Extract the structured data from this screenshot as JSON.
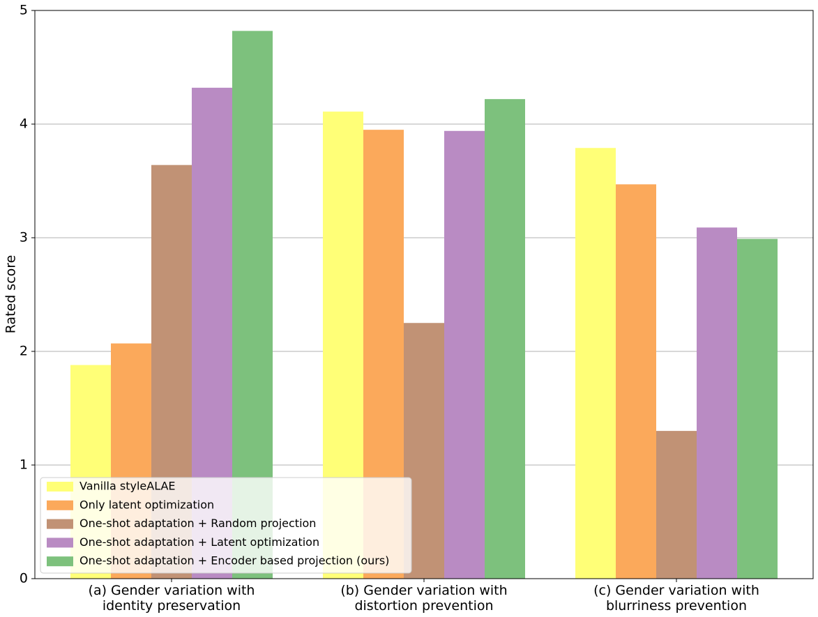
{
  "chart_data": {
    "type": "bar",
    "y_label": "Rated score",
    "categories": [
      "(a) Gender variation with\nidentity preservation",
      "(b) Gender variation with\ndistortion prevention",
      "(c) Gender variation with\nblurriness prevention"
    ],
    "series": [
      {
        "name": "Vanilla styleALAE",
        "color": "#ffff77",
        "values": [
          1.88,
          4.11,
          3.79
        ]
      },
      {
        "name": "Only latent optimization",
        "color": "#fba95b",
        "values": [
          2.07,
          3.95,
          3.47
        ]
      },
      {
        "name": "One-shot adaptation + Random projection",
        "color": "#c19275",
        "values": [
          3.64,
          2.25,
          1.3
        ]
      },
      {
        "name": "One-shot adaptation + Latent optimization",
        "color": "#b98bc3",
        "values": [
          4.32,
          3.94,
          3.09
        ]
      },
      {
        "name": "One-shot adaptation + Encoder based projection (ours)",
        "color": "#7dc17d",
        "values": [
          4.82,
          4.22,
          2.99
        ]
      }
    ],
    "ylim": [
      0,
      5
    ],
    "yticks": [
      0,
      1,
      2,
      3,
      4,
      5
    ],
    "grid": true,
    "legend": "lower left"
  }
}
